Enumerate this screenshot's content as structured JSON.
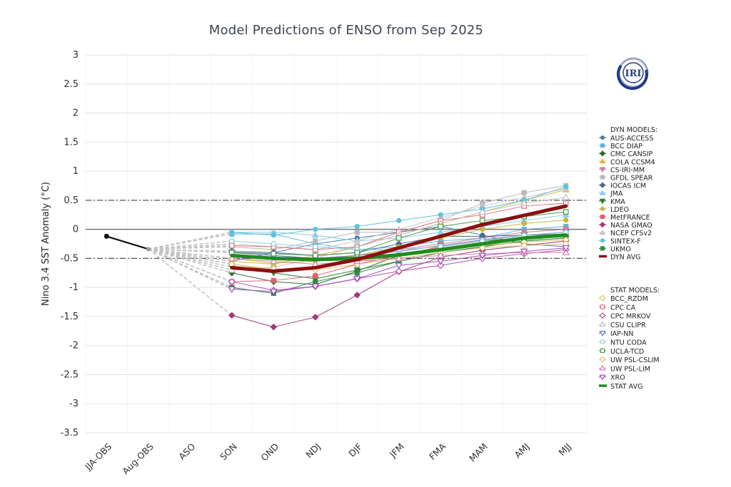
{
  "chart_data": {
    "type": "line",
    "title": "Model Predictions of ENSO from Sep 2025",
    "xlabel": "",
    "ylabel": "Nino 3.4 SST Anomaly (°C)",
    "ylim": [
      -3.5,
      3
    ],
    "yticks": [
      "3",
      "2.5",
      "2",
      "1.5",
      "1",
      "0.5",
      "0",
      "-0.5",
      "-1",
      "-1.5",
      "-2",
      "-2.5",
      "-3",
      "-3.5"
    ],
    "ytick_values": [
      3,
      2.5,
      2,
      1.5,
      1,
      0.5,
      0,
      -0.5,
      -1,
      -1.5,
      -2,
      -2.5,
      -3,
      -3.5
    ],
    "categories": [
      "JJA-OBS",
      "Aug-OBS",
      "ASO",
      "SON",
      "OND",
      "NDJ",
      "DJF",
      "JFM",
      "FMA",
      "MAM",
      "AMJ",
      "MJJ"
    ],
    "reference_lines": [
      0.5,
      -0.5
    ],
    "grid": true,
    "legend_position": "right",
    "logo": "IRI",
    "observed": {
      "name": "OBS",
      "color": "#111111",
      "values": [
        -0.12,
        -0.34
      ]
    },
    "forecast_start_index": 3,
    "dyn_header": "DYN MODELS:",
    "stat_header": "STAT MODELS:",
    "dyn_models": [
      {
        "name": "AUS-ACCESS",
        "color": "#4a7aa8",
        "marker": "circle",
        "filled": true,
        "values": [
          -0.55,
          -0.4,
          -0.25,
          -0.15,
          -0.05,
          0.05,
          -0.1,
          -0.25,
          -0.3
        ]
      },
      {
        "name": "BCC DIAP",
        "color": "#5bb8dc",
        "marker": "square",
        "filled": true,
        "values": [
          -0.08,
          -0.08,
          -0.25,
          -0.35,
          -0.3,
          -0.2,
          -0.15,
          0.0,
          0.05
        ]
      },
      {
        "name": "CMC CANSIP",
        "color": "#2e6b2e",
        "marker": "diamond",
        "filled": true,
        "values": [
          -0.75,
          -0.9,
          -0.95,
          -0.72,
          -0.45,
          -0.3,
          -0.2,
          -0.15,
          -0.12
        ]
      },
      {
        "name": "COLA CCSM4",
        "color": "#e0b44a",
        "marker": "triangle",
        "filled": true,
        "values": [
          -0.55,
          -0.6,
          -0.45,
          -0.3,
          -0.1,
          0.1,
          0.3,
          0.5,
          0.68
        ]
      },
      {
        "name": "CS-IRI-MM",
        "color": "#e07a90",
        "marker": "tri-down",
        "filled": true,
        "values": [
          -0.4,
          -0.45,
          -0.5,
          -0.45,
          -0.35,
          -0.25,
          -0.15,
          -0.05,
          0.0
        ]
      },
      {
        "name": "GFDL SPEAR",
        "color": "#b8b8b8",
        "marker": "square",
        "filled": true,
        "values": [
          -0.3,
          -0.35,
          -0.2,
          -0.05,
          -0.05,
          0.15,
          0.45,
          0.63,
          0.75
        ]
      },
      {
        "name": "IOCAS ICM",
        "color": "#4a6a8a",
        "marker": "diamond",
        "filled": true,
        "values": [
          -0.38,
          -0.4,
          -0.45,
          -0.4,
          -0.25,
          -0.12,
          -0.12,
          -0.1,
          -0.08
        ]
      },
      {
        "name": "JMA",
        "color": "#8acde8",
        "marker": "triangle",
        "filled": true,
        "values": [
          -0.05,
          -0.05,
          -0.1,
          -0.2,
          -0.15,
          -0.05,
          0.05,
          0.15,
          0.25
        ]
      },
      {
        "name": "KMA",
        "color": "#2e7d32",
        "marker": "tri-down",
        "filled": true,
        "values": [
          -0.65,
          -0.75,
          -0.85,
          -0.7,
          -0.55,
          -0.4,
          -0.3,
          -0.2,
          -0.15
        ]
      },
      {
        "name": "LDEO",
        "color": "#c9b53a",
        "marker": "circle",
        "filled": true,
        "values": [
          -0.5,
          -0.58,
          -0.55,
          -0.45,
          -0.3,
          -0.15,
          0.0,
          0.1,
          0.16
        ]
      },
      {
        "name": "MetFRANCE",
        "color": "#e06070",
        "marker": "square",
        "filled": true,
        "values": [
          -0.9,
          -0.88,
          -0.8,
          -0.6,
          -0.45,
          -0.3,
          -0.2,
          -0.1,
          -0.05
        ]
      },
      {
        "name": "NASA GMAO",
        "color": "#a03a7a",
        "marker": "diamond",
        "filled": true,
        "values": [
          -1.48,
          -1.68,
          -1.51,
          -1.13,
          -0.73,
          -0.48,
          -0.36,
          -0.28,
          -0.2
        ]
      },
      {
        "name": "NCEP CFSv2",
        "color": "#c8c8c8",
        "marker": "triangle",
        "filled": true,
        "values": [
          -0.25,
          -0.3,
          -0.35,
          -0.2,
          0.0,
          0.2,
          0.4,
          0.55,
          0.7
        ]
      },
      {
        "name": "SINTEX-F",
        "color": "#5bc3e0",
        "marker": "circle",
        "filled": true,
        "values": [
          -0.05,
          -0.1,
          0.0,
          0.05,
          0.15,
          0.25,
          0.35,
          0.5,
          0.73
        ]
      },
      {
        "name": "UKMO",
        "color": "#2e8b3e",
        "marker": "square",
        "filled": true,
        "values": [
          -1.0,
          -1.1,
          -0.9,
          -0.75,
          -0.55,
          -0.4,
          -0.3,
          -0.2,
          -0.15
        ]
      }
    ],
    "dyn_avg": {
      "name": "DYN AVG",
      "color": "#8b1010",
      "values": [
        -0.66,
        -0.72,
        -0.66,
        -0.52,
        -0.32,
        -0.12,
        0.08,
        0.24,
        0.4
      ]
    },
    "stat_models": [
      {
        "name": "BCC_RZDM",
        "color": "#e0c060",
        "marker": "diamond",
        "filled": false,
        "values": [
          -0.6,
          -0.7,
          -0.65,
          -0.55,
          -0.45,
          -0.35,
          -0.28,
          -0.22,
          -0.18
        ]
      },
      {
        "name": "CPC CA",
        "color": "#e07080",
        "marker": "square",
        "filled": false,
        "values": [
          -0.28,
          -0.3,
          -0.35,
          -0.3,
          -0.05,
          0.15,
          0.25,
          0.4,
          0.45
        ]
      },
      {
        "name": "CPC MRKOV",
        "color": "#b050a0",
        "marker": "diamond",
        "filled": false,
        "values": [
          -0.9,
          -1.05,
          -0.98,
          -0.85,
          -0.72,
          -0.62,
          -0.5,
          -0.42,
          -0.35
        ]
      },
      {
        "name": "CSU CLIPR",
        "color": "#c0c0c0",
        "marker": "triangle",
        "filled": false,
        "values": [
          -0.7,
          -0.65,
          -0.5,
          -0.3,
          -0.1,
          0.1,
          0.3,
          0.45,
          0.55
        ]
      },
      {
        "name": "IAP-NN",
        "color": "#6a80c0",
        "marker": "tri-down",
        "filled": false,
        "values": [
          -0.4,
          -0.45,
          -0.5,
          -0.45,
          -0.38,
          -0.28,
          -0.18,
          -0.1,
          -0.05
        ]
      },
      {
        "name": "NTU CODA",
        "color": "#8ad0e0",
        "marker": "circle",
        "filled": false,
        "values": [
          -0.2,
          -0.25,
          -0.3,
          -0.35,
          -0.35,
          -0.3,
          -0.2,
          -0.1,
          -0.05
        ]
      },
      {
        "name": "UCLA-TCD",
        "color": "#4a9a4a",
        "marker": "square",
        "filled": false,
        "values": [
          -0.4,
          -0.42,
          -0.45,
          -0.4,
          -0.15,
          0.05,
          0.15,
          0.22,
          0.3
        ]
      },
      {
        "name": "UW PSL-CSLIM",
        "color": "#e0c070",
        "marker": "diamond",
        "filled": false,
        "values": [
          -0.6,
          -0.68,
          -0.7,
          -0.6,
          -0.5,
          -0.4,
          -0.32,
          -0.28,
          -0.25
        ]
      },
      {
        "name": "UW PSL-LIM",
        "color": "#e080b0",
        "marker": "triangle",
        "filled": false,
        "values": [
          -0.5,
          -0.55,
          -0.6,
          -0.55,
          -0.5,
          -0.45,
          -0.42,
          -0.4,
          -0.4
        ]
      },
      {
        "name": "XRO",
        "color": "#a050c0",
        "marker": "tri-down",
        "filled": false,
        "values": [
          -1.03,
          -1.07,
          -0.98,
          -0.85,
          -0.62,
          -0.55,
          -0.45,
          -0.38,
          -0.32
        ]
      }
    ],
    "stat_avg": {
      "name": "STAT AVG",
      "color": "#1e8c1e",
      "values": [
        -0.45,
        -0.5,
        -0.52,
        -0.5,
        -0.44,
        -0.35,
        -0.25,
        -0.15,
        -0.1
      ]
    }
  }
}
